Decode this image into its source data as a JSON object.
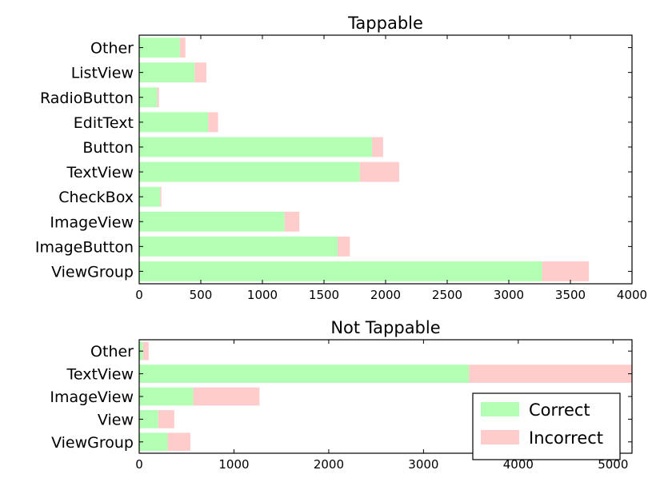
{
  "colors": {
    "correct": "#b3ffb3",
    "incorrect": "#ffcccc"
  },
  "legend": {
    "correct_label": "Correct",
    "incorrect_label": "Incorrect",
    "placement": "lower-right"
  },
  "chart_data": [
    {
      "type": "bar",
      "orientation": "horizontal",
      "stacked": true,
      "title": "Tappable",
      "categories": [
        "ViewGroup",
        "ImageButton",
        "ImageView",
        "CheckBox",
        "TextView",
        "Button",
        "EditText",
        "RadioButton",
        "ListView",
        "Other"
      ],
      "series": [
        {
          "name": "Correct",
          "values": [
            3270,
            1610,
            1180,
            170,
            1790,
            1890,
            560,
            145,
            450,
            330
          ]
        },
        {
          "name": "Incorrect",
          "values": [
            380,
            100,
            120,
            10,
            320,
            90,
            80,
            15,
            95,
            45
          ]
        }
      ],
      "xlim": [
        0,
        4000
      ],
      "xticks": [
        0,
        500,
        1000,
        1500,
        2000,
        2500,
        3000,
        3500,
        4000
      ],
      "grid": false
    },
    {
      "type": "bar",
      "orientation": "horizontal",
      "stacked": true,
      "title": "Not Tappable",
      "categories": [
        "ViewGroup",
        "View",
        "ImageView",
        "TextView",
        "Other"
      ],
      "series": [
        {
          "name": "Correct",
          "values": [
            300,
            200,
            570,
            3480,
            40
          ]
        },
        {
          "name": "Incorrect",
          "values": [
            240,
            170,
            700,
            1780,
            60
          ]
        }
      ],
      "xlim": [
        0,
        5200
      ],
      "xticks": [
        0,
        1000,
        2000,
        3000,
        4000,
        5000
      ],
      "grid": false
    }
  ]
}
